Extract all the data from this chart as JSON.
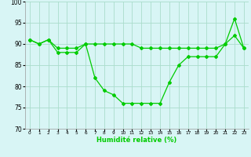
{
  "x": [
    0,
    1,
    2,
    3,
    4,
    5,
    6,
    7,
    8,
    9,
    10,
    11,
    12,
    13,
    14,
    15,
    16,
    17,
    18,
    19,
    20,
    21,
    22,
    23
  ],
  "line1": [
    91,
    90,
    91,
    88,
    88,
    88,
    90,
    82,
    79,
    78,
    76,
    76,
    76,
    76,
    76,
    81,
    85,
    87,
    87,
    87,
    87,
    90,
    96,
    89
  ],
  "line2": [
    91,
    90,
    91,
    89,
    89,
    89,
    90,
    90,
    90,
    90,
    90,
    90,
    89,
    89,
    89,
    89,
    89,
    89,
    89,
    89,
    89,
    90,
    92,
    89
  ],
  "line_color": "#00cc00",
  "background_color": "#d8f5f5",
  "grid_color": "#aaddcc",
  "xlabel": "Humidité relative (%)",
  "ylim": [
    70,
    100
  ],
  "xlim": [
    -0.5,
    23.5
  ],
  "yticks": [
    70,
    75,
    80,
    85,
    90,
    95,
    100
  ],
  "xticks": [
    0,
    1,
    2,
    3,
    4,
    5,
    6,
    7,
    8,
    9,
    10,
    11,
    12,
    13,
    14,
    15,
    16,
    17,
    18,
    19,
    20,
    21,
    22,
    23
  ]
}
